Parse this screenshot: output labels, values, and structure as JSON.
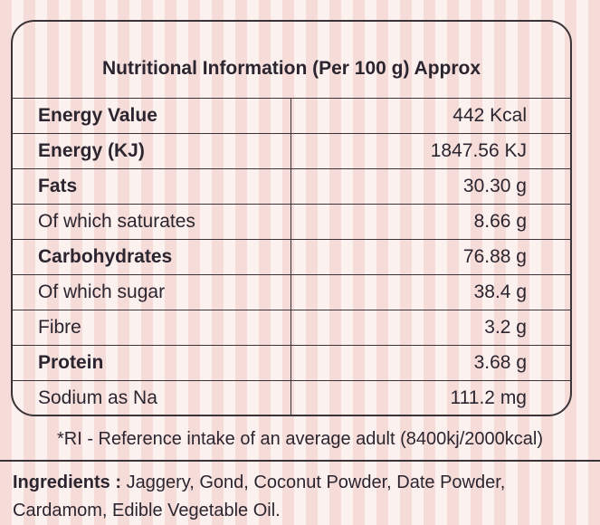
{
  "header": {
    "title": "Nutritional Information (Per 100 g) Approx"
  },
  "table": {
    "rows": [
      [
        "Energy Value",
        "442 Kcal"
      ],
      [
        "Energy (KJ)",
        "1847.56 KJ"
      ],
      [
        "Fats",
        "30.30 g"
      ],
      [
        "Of which saturates",
        "8.66 g"
      ],
      [
        "Carbohydrates",
        "76.88 g"
      ],
      [
        "Of which sugar",
        "38.4 g"
      ],
      [
        "Fibre",
        "3.2 g"
      ],
      [
        "Protein",
        "3.68 g"
      ],
      [
        "Sodium as Na",
        "111.2 mg"
      ]
    ]
  },
  "footnote": "*RI - Reference intake of an average adult (8400kj/2000kcal)",
  "ingredients": {
    "label": "Ingredients :",
    "text": "Jaggery, Gond, Coconut Powder, Date Powder, Cardamom, Edible Vegetable Oil."
  }
}
